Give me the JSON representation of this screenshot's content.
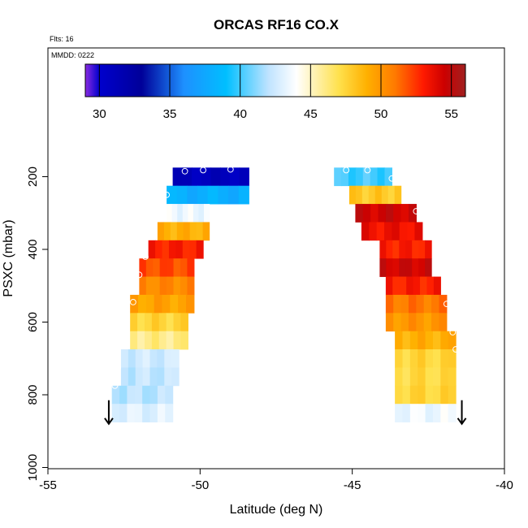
{
  "chart_data": {
    "type": "heatmap",
    "title": "ORCAS RF16 CO.X",
    "flts_label": "Flts: 16",
    "mmdd_label": "MMDD: 0222",
    "xlabel": "Latitude (deg N)",
    "ylabel": "PSXC (mbar)",
    "xlim": [
      -55,
      -40
    ],
    "ylim": [
      1000,
      0
    ],
    "x_ticks": [
      -55,
      -50,
      -45,
      -40
    ],
    "x_tick_labels": [
      "-55",
      "-50",
      "-45",
      "-40"
    ],
    "y_ticks": [
      200,
      400,
      600,
      800,
      1000
    ],
    "y_tick_labels": [
      "200",
      "400",
      "600",
      "800",
      "1000"
    ],
    "colorbar": {
      "min": 29,
      "max": 56,
      "ticks": [
        30,
        35,
        40,
        45,
        50,
        55
      ],
      "tick_labels": [
        "30",
        "35",
        "40",
        "45",
        "50",
        "55"
      ],
      "stops": [
        {
          "v": 29,
          "c": "#8a2be2"
        },
        {
          "v": 30,
          "c": "#0000cd"
        },
        {
          "v": 33,
          "c": "#000099"
        },
        {
          "v": 36,
          "c": "#1e90ff"
        },
        {
          "v": 39,
          "c": "#00bfff"
        },
        {
          "v": 42,
          "c": "#bfe3ff"
        },
        {
          "v": 44,
          "c": "#ffffff"
        },
        {
          "v": 47,
          "c": "#ffe14d"
        },
        {
          "v": 49,
          "c": "#ffb000"
        },
        {
          "v": 51,
          "c": "#ff7a00"
        },
        {
          "v": 53,
          "c": "#ff1a00"
        },
        {
          "v": 54.5,
          "c": "#cc0000"
        },
        {
          "v": 56,
          "c": "#a02020"
        }
      ]
    },
    "groups": [
      {
        "name": "left",
        "bands": [
          {
            "p": 200,
            "lat_min": -50.9,
            "lat_max": -48.4,
            "value": 31
          },
          {
            "p": 250,
            "lat_min": -51.1,
            "lat_max": -48.4,
            "value": 38
          },
          {
            "p": 300,
            "lat_min": -51.1,
            "lat_max": -49.7,
            "value": 43.5
          },
          {
            "p": 350,
            "lat_min": -51.4,
            "lat_max": -49.7,
            "value": 49
          },
          {
            "p": 400,
            "lat_min": -51.7,
            "lat_max": -49.9,
            "value": 53
          },
          {
            "p": 450,
            "lat_min": -52.0,
            "lat_max": -50.2,
            "value": 52
          },
          {
            "p": 500,
            "lat_min": -52.0,
            "lat_max": -50.2,
            "value": 50.5
          },
          {
            "p": 550,
            "lat_min": -52.3,
            "lat_max": -50.2,
            "value": 49.5
          },
          {
            "p": 600,
            "lat_min": -52.3,
            "lat_max": -50.4,
            "value": 47.5
          },
          {
            "p": 650,
            "lat_min": -52.3,
            "lat_max": -50.4,
            "value": 46
          },
          {
            "p": 700,
            "lat_min": -52.6,
            "lat_max": -50.7,
            "value": 42.5
          },
          {
            "p": 750,
            "lat_min": -52.6,
            "lat_max": -50.7,
            "value": 42.2
          },
          {
            "p": 800,
            "lat_min": -52.9,
            "lat_max": -50.9,
            "value": 42
          },
          {
            "p": 850,
            "lat_min": -52.9,
            "lat_max": -50.9,
            "value": 43
          }
        ],
        "circles": [
          {
            "lat": -50.5,
            "p": 185
          },
          {
            "lat": -49.9,
            "p": 182
          },
          {
            "lat": -49.0,
            "p": 180
          },
          {
            "lat": -51.1,
            "p": 250
          },
          {
            "lat": -51.8,
            "p": 420
          },
          {
            "lat": -52.0,
            "p": 470
          },
          {
            "lat": -52.2,
            "p": 545
          },
          {
            "lat": -52.7,
            "p": 725
          },
          {
            "lat": -52.8,
            "p": 775
          }
        ],
        "arrow": {
          "lat": -53.0,
          "p_from": 815,
          "p_to": 880
        }
      },
      {
        "name": "right",
        "bands": [
          {
            "p": 200,
            "lat_min": -45.6,
            "lat_max": -43.7,
            "value": 40
          },
          {
            "p": 250,
            "lat_min": -45.1,
            "lat_max": -43.4,
            "value": 48
          },
          {
            "p": 300,
            "lat_min": -44.9,
            "lat_max": -42.9,
            "value": 54.5
          },
          {
            "p": 350,
            "lat_min": -44.7,
            "lat_max": -42.7,
            "value": 53.5
          },
          {
            "p": 400,
            "lat_min": -44.1,
            "lat_max": -42.4,
            "value": 53
          },
          {
            "p": 450,
            "lat_min": -44.1,
            "lat_max": -42.4,
            "value": 54.5
          },
          {
            "p": 500,
            "lat_min": -43.9,
            "lat_max": -42.1,
            "value": 53
          },
          {
            "p": 550,
            "lat_min": -43.9,
            "lat_max": -41.9,
            "value": 51
          },
          {
            "p": 600,
            "lat_min": -43.9,
            "lat_max": -41.9,
            "value": 50
          },
          {
            "p": 650,
            "lat_min": -43.6,
            "lat_max": -41.6,
            "value": 49
          },
          {
            "p": 700,
            "lat_min": -43.6,
            "lat_max": -41.6,
            "value": 47.5
          },
          {
            "p": 750,
            "lat_min": -43.6,
            "lat_max": -41.6,
            "value": 47.3
          },
          {
            "p": 800,
            "lat_min": -43.6,
            "lat_max": -41.6,
            "value": 47.5
          },
          {
            "p": 850,
            "lat_min": -43.6,
            "lat_max": -41.6,
            "value": 43.5
          }
        ],
        "circles": [
          {
            "lat": -45.2,
            "p": 182
          },
          {
            "lat": -44.5,
            "p": 182
          },
          {
            "lat": -43.7,
            "p": 205
          },
          {
            "lat": -42.9,
            "p": 295
          },
          {
            "lat": -41.9,
            "p": 550
          },
          {
            "lat": -41.7,
            "p": 628
          },
          {
            "lat": -41.6,
            "p": 675
          }
        ],
        "arrow": {
          "lat": -41.4,
          "p_from": 815,
          "p_to": 880
        }
      }
    ]
  }
}
